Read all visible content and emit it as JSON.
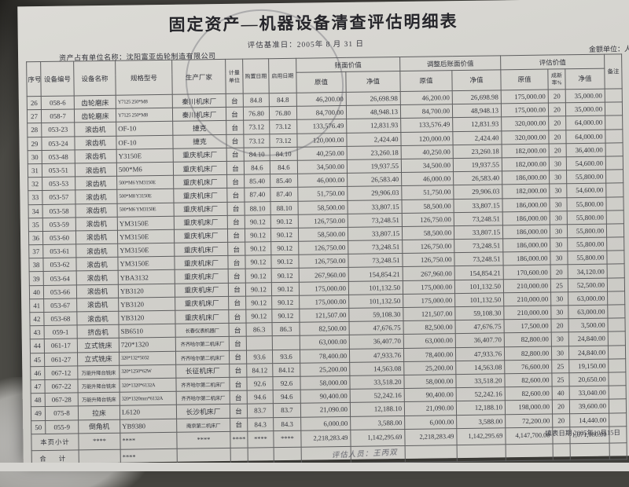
{
  "header": {
    "title": "固定资产—机器设备清查评估明细表",
    "base_date_label": "评估基准日：",
    "base_date": "2005年 8 月 31 日",
    "owner_label": "资产占有单位名称：",
    "owner_name": "沈阳富亚齿轮制造有限公司",
    "amount_unit": "金额单位：人民币元"
  },
  "table": {
    "headers": {
      "seq": "序号",
      "code": "设备编号",
      "name": "设备名称",
      "model": "规格型号",
      "maker": "生产厂家",
      "unit": "计量单位",
      "buy_date": "购置日期",
      "use_date": "启用日期",
      "book": "账面价值",
      "adjusted": "调整后账面价值",
      "assessed": "评估价值",
      "orig": "原值",
      "net": "净值",
      "rate": "成新率%",
      "remark": "备注"
    },
    "rows": [
      [
        "26",
        "058-6",
        "齿轮磨床",
        "Y7125 250*M8",
        "秦川机床厂",
        "台",
        "84.8",
        "84.8",
        "46,200.00",
        "26,698.98",
        "46,200.00",
        "26,698.98",
        "175,000.00",
        "20",
        "35,000.00"
      ],
      [
        "27",
        "058-7",
        "齿轮磨床",
        "Y7125 250*M8",
        "秦川机床厂",
        "台",
        "76.80",
        "76.80",
        "84,700.00",
        "48,948.13",
        "84,700.00",
        "48,948.13",
        "175,000.00",
        "20",
        "35,000.00"
      ],
      [
        "28",
        "053-23",
        "滚齿机",
        "OF-10",
        "捷克",
        "台",
        "73.12",
        "73.12",
        "133,576.49",
        "12,831.93",
        "133,576.49",
        "12,831.93",
        "320,000.00",
        "20",
        "64,000.00"
      ],
      [
        "29",
        "053-24",
        "滚齿机",
        "OF-10",
        "捷克",
        "台",
        "73.12",
        "73.12",
        "120,000.00",
        "2,424.40",
        "120,000.00",
        "2,424.40",
        "320,000.00",
        "20",
        "64,000.00"
      ],
      [
        "30",
        "053-48",
        "滚齿机",
        "Y3150E",
        "重庆机床厂",
        "台",
        "84.10",
        "84.10",
        "40,250.00",
        "23,260.18",
        "40,250.00",
        "23,260.18",
        "182,000.00",
        "20",
        "36,400.00"
      ],
      [
        "31",
        "053-51",
        "滚齿机",
        "500*M6",
        "重庆机床厂",
        "台",
        "84.6",
        "84.6",
        "34,500.00",
        "19,937.55",
        "34,500.00",
        "19,937.55",
        "182,000.00",
        "30",
        "54,600.00"
      ],
      [
        "32",
        "053-53",
        "滚齿机",
        "500*M6 YM3150E",
        "重庆机床厂",
        "台",
        "85.40",
        "85.40",
        "46,000.00",
        "26,583.40",
        "46,000.00",
        "26,583.40",
        "186,000.00",
        "30",
        "55,800.00"
      ],
      [
        "33",
        "053-57",
        "滚齿机",
        "500*M8 Y3150E",
        "重庆机床厂",
        "台",
        "87.40",
        "87.40",
        "51,750.00",
        "29,906.03",
        "51,750.00",
        "29,906.03",
        "182,000.00",
        "30",
        "54,600.00"
      ],
      [
        "34",
        "053-58",
        "滚齿机",
        "500*M6 YM3150E",
        "重庆机床厂",
        "台",
        "88.10",
        "88.10",
        "58,500.00",
        "33,807.15",
        "58,500.00",
        "33,807.15",
        "186,000.00",
        "30",
        "55,800.00"
      ],
      [
        "35",
        "053-59",
        "滚齿机",
        "YM3150E",
        "重庆机床厂",
        "台",
        "90.12",
        "90.12",
        "126,750.00",
        "73,248.51",
        "126,750.00",
        "73,248.51",
        "186,000.00",
        "30",
        "55,800.00"
      ],
      [
        "36",
        "053-60",
        "滚齿机",
        "YM3150E",
        "重庆机床厂",
        "台",
        "90.12",
        "90.12",
        "58,500.00",
        "33,807.15",
        "58,500.00",
        "33,807.15",
        "186,000.00",
        "30",
        "55,800.00"
      ],
      [
        "37",
        "053-61",
        "滚齿机",
        "YM3150E",
        "重庆机床厂",
        "台",
        "90.12",
        "90.12",
        "126,750.00",
        "73,248.51",
        "126,750.00",
        "73,248.51",
        "186,000.00",
        "30",
        "55,800.00"
      ],
      [
        "38",
        "053-62",
        "滚齿机",
        "YM3150E",
        "重庆机床厂",
        "台",
        "90.12",
        "90.12",
        "126,750.00",
        "73,248.51",
        "126,750.00",
        "73,248.51",
        "186,000.00",
        "30",
        "55,800.00"
      ],
      [
        "39",
        "053-64",
        "滚齿机",
        "YBA3132",
        "重庆机床厂",
        "台",
        "90.12",
        "90.12",
        "267,960.00",
        "154,854.21",
        "267,960.00",
        "154,854.21",
        "170,600.00",
        "20",
        "34,120.00"
      ],
      [
        "40",
        "053-66",
        "滚齿机",
        "YB3120",
        "重庆机床厂",
        "台",
        "90.12",
        "90.12",
        "175,000.00",
        "101,132.50",
        "175,000.00",
        "101,132.50",
        "210,000.00",
        "25",
        "52,500.00"
      ],
      [
        "41",
        "053-67",
        "滚齿机",
        "YB3120",
        "重庆机床厂",
        "台",
        "90.12",
        "90.12",
        "175,000.00",
        "101,132.50",
        "175,000.00",
        "101,132.50",
        "210,000.00",
        "30",
        "63,000.00"
      ],
      [
        "42",
        "053-68",
        "滚齿机",
        "YB3120",
        "重庆机床厂",
        "台",
        "90.12",
        "90.12",
        "121,507.00",
        "59,108.30",
        "121,507.00",
        "59,108.30",
        "210,000.00",
        "30",
        "63,000.00"
      ],
      [
        "43",
        "059-1",
        "挤齿机",
        "SB6510",
        "长春仪表机器厂",
        "台",
        "86.3",
        "86.3",
        "82,500.00",
        "47,676.75",
        "82,500.00",
        "47,676.75",
        "17,500.00",
        "20",
        "3,500.00"
      ],
      [
        "44",
        "061-17",
        "立式铣床",
        "720*1320",
        "齐齐哈尔第二机床厂",
        "台",
        "",
        "",
        "63,000.00",
        "36,407.70",
        "63,000.00",
        "36,407.70",
        "82,800.00",
        "30",
        "24,840.00"
      ],
      [
        "45",
        "061-27",
        "立式铣床",
        "320*132*5032",
        "齐齐哈尔第二机床厂",
        "台",
        "93.6",
        "93.6",
        "78,400.00",
        "47,933.76",
        "78,400.00",
        "47,933.76",
        "82,800.00",
        "30",
        "24,840.00"
      ],
      [
        "46",
        "067-12",
        "万能升降台铣床",
        "320*1250*62W",
        "长征机床厂",
        "台",
        "84.12",
        "84.12",
        "25,200.00",
        "14,563.08",
        "25,200.00",
        "14,563.08",
        "76,600.00",
        "25",
        "19,150.00"
      ],
      [
        "47",
        "067-22",
        "万能升降台铣床",
        "320*1320*6132A",
        "齐齐哈尔第二机床厂",
        "台",
        "92.6",
        "92.6",
        "58,000.00",
        "33,518.20",
        "58,000.00",
        "33,518.20",
        "82,600.00",
        "25",
        "20,650.00"
      ],
      [
        "48",
        "067-28",
        "万能升降台铣床",
        "320*1320mm*6132A",
        "齐齐哈尔第二机床厂",
        "台",
        "94.6",
        "94.6",
        "90,400.00",
        "52,242.16",
        "90,400.00",
        "52,242.16",
        "82,600.00",
        "40",
        "33,040.00"
      ],
      [
        "49",
        "075-8",
        "拉床",
        "L6120",
        "长沙机床厂",
        "台",
        "83.7",
        "83.7",
        "21,090.00",
        "12,188.10",
        "21,090.00",
        "12,188.10",
        "198,000.00",
        "20",
        "39,600.00"
      ],
      [
        "50",
        "055-9",
        "倒角机",
        "YB9380",
        "南京第二机床厂",
        "台",
        "84.3",
        "84.3",
        "6,000.00",
        "3,588.00",
        "6,000.00",
        "3,588.00",
        "72,200.00",
        "20",
        "14,440.00"
      ]
    ],
    "subtotal_row": {
      "label": "本页小计",
      "cells": [
        "****",
        "****",
        "****",
        "****",
        "****",
        "****",
        "2,218,283.49",
        "1,142,295.69",
        "2,218,283.49",
        "1,142,295.69",
        "4,147,700.00",
        "",
        "1,071,080.00",
        ""
      ]
    },
    "total_row": {
      "label": "合 计",
      "cells": [
        "",
        "****",
        "",
        "",
        "",
        "",
        "",
        "",
        "",
        "",
        "",
        "",
        "",
        ""
      ]
    }
  },
  "footer": {
    "assessor_label": "评估人员：",
    "assessor_name": "王丙双",
    "fill_date": "填表日期 2005年10月15日"
  }
}
